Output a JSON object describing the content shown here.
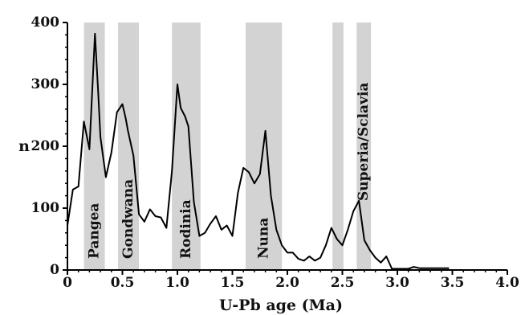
{
  "chart_data": {
    "type": "line",
    "title": "",
    "xlabel": "U-Pb age (Ma)",
    "ylabel": "n",
    "xlim": [
      0,
      4.0
    ],
    "ylim": [
      0,
      400
    ],
    "xticks": [
      0,
      0.5,
      1.0,
      1.5,
      2.0,
      2.5,
      3.0,
      3.5,
      4.0
    ],
    "xtick_labels": [
      "0",
      "0.5",
      "1.0",
      "1.5",
      "2.0",
      "2.5",
      "3.0",
      "3.5",
      "4.0"
    ],
    "yticks": [
      0,
      100,
      200,
      300,
      400
    ],
    "ytick_labels": [
      "0",
      "100",
      "200",
      "300",
      "400"
    ],
    "grid": false,
    "line_color": "#000000",
    "band_color": "#d3d3d3",
    "bands": [
      {
        "name": "Pangea",
        "start": 0.15,
        "end": 0.34
      },
      {
        "name": "Gondwana",
        "start": 0.46,
        "end": 0.65
      },
      {
        "name": "Rodinia",
        "start": 0.95,
        "end": 1.21
      },
      {
        "name": "Nuna",
        "start": 1.62,
        "end": 1.95
      },
      {
        "name": "",
        "start": 2.41,
        "end": 2.51
      },
      {
        "name": "Superia/Sclavia",
        "start": 2.63,
        "end": 2.76
      }
    ],
    "series": [
      {
        "x": [
          0,
          0.05,
          0.1,
          0.15,
          0.2,
          0.25,
          0.28,
          0.3,
          0.35,
          0.4,
          0.45,
          0.5,
          0.53,
          0.55,
          0.6,
          0.65,
          0.7,
          0.75,
          0.8,
          0.85,
          0.9,
          0.95,
          1.0,
          1.03,
          1.07,
          1.1,
          1.15,
          1.2,
          1.25,
          1.3,
          1.35,
          1.4,
          1.45,
          1.5,
          1.55,
          1.6,
          1.65,
          1.7,
          1.75,
          1.8,
          1.85,
          1.9,
          1.95,
          2.0,
          2.05,
          2.1,
          2.15,
          2.2,
          2.25,
          2.3,
          2.35,
          2.4,
          2.45,
          2.5,
          2.55,
          2.6,
          2.65,
          2.7,
          2.75,
          2.8,
          2.85,
          2.9,
          2.95,
          3.0,
          3.05,
          3.1,
          3.15,
          3.2,
          3.3,
          3.4,
          3.47
        ],
        "values": [
          72,
          130,
          135,
          240,
          195,
          382,
          285,
          215,
          150,
          190,
          255,
          268,
          245,
          225,
          185,
          90,
          78,
          98,
          87,
          85,
          68,
          160,
          300,
          262,
          248,
          232,
          110,
          55,
          60,
          75,
          87,
          65,
          72,
          55,
          125,
          165,
          158,
          140,
          155,
          225,
          120,
          65,
          40,
          28,
          28,
          18,
          15,
          22,
          15,
          20,
          40,
          68,
          50,
          40,
          65,
          95,
          112,
          48,
          32,
          20,
          12,
          22,
          2,
          2,
          2,
          2,
          5,
          3,
          3,
          3,
          3
        ]
      }
    ]
  }
}
